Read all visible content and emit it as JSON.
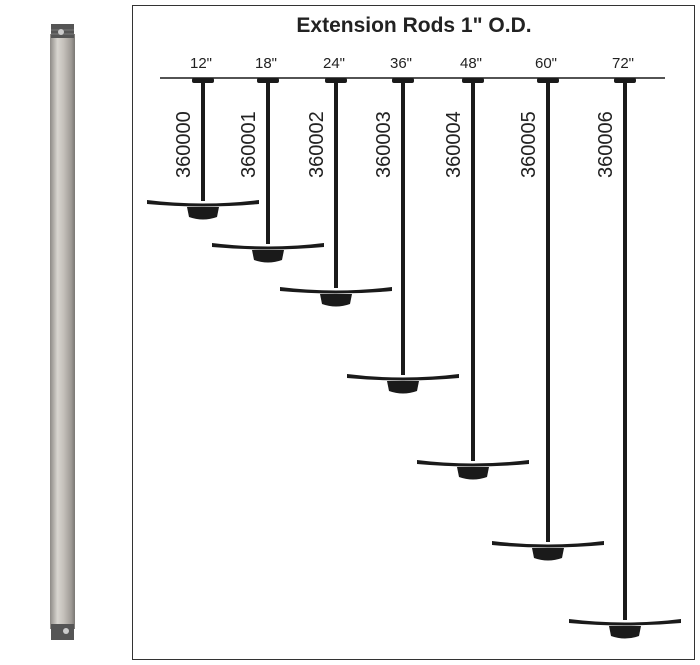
{
  "title": "Extension Rods 1\" O.D.",
  "rods": [
    {
      "length": "12\"",
      "part_number": "360000"
    },
    {
      "length": "18\"",
      "part_number": "360001"
    },
    {
      "length": "24\"",
      "part_number": "360002"
    },
    {
      "length": "36\"",
      "part_number": "360003"
    },
    {
      "length": "48\"",
      "part_number": "360004"
    },
    {
      "length": "60\"",
      "part_number": "360005"
    },
    {
      "length": "72\"",
      "part_number": "360006"
    }
  ],
  "colors": {
    "ink": "#1a1a1a",
    "rod_finish": "#b8b4ae"
  }
}
